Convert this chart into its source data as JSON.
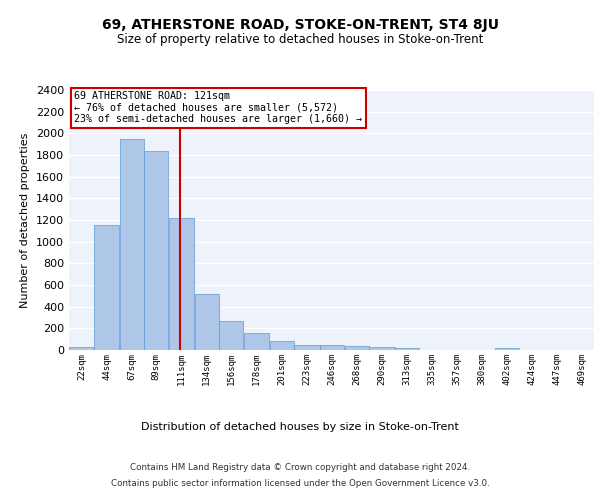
{
  "title": "69, ATHERSTONE ROAD, STOKE-ON-TRENT, ST4 8JU",
  "subtitle": "Size of property relative to detached houses in Stoke-on-Trent",
  "xlabel": "Distribution of detached houses by size in Stoke-on-Trent",
  "ylabel": "Number of detached properties",
  "bin_labels": [
    "22sqm",
    "44sqm",
    "67sqm",
    "89sqm",
    "111sqm",
    "134sqm",
    "156sqm",
    "178sqm",
    "201sqm",
    "223sqm",
    "246sqm",
    "268sqm",
    "290sqm",
    "313sqm",
    "335sqm",
    "357sqm",
    "380sqm",
    "402sqm",
    "424sqm",
    "447sqm",
    "469sqm"
  ],
  "bin_edges": [
    22,
    44,
    67,
    89,
    111,
    134,
    156,
    178,
    201,
    223,
    246,
    268,
    290,
    313,
    335,
    357,
    380,
    402,
    424,
    447,
    469,
    491
  ],
  "bar_heights": [
    30,
    1150,
    1950,
    1840,
    1215,
    515,
    270,
    155,
    80,
    50,
    45,
    40,
    25,
    15,
    0,
    0,
    0,
    20,
    0,
    0,
    0
  ],
  "bar_color": "#aec6e8",
  "bar_edge_color": "#5b9bd5",
  "bg_color": "#eef3fb",
  "grid_color": "#ffffff",
  "property_size": 121,
  "red_line_color": "#cc0000",
  "annotation_line1": "69 ATHERSTONE ROAD: 121sqm",
  "annotation_line2": "← 76% of detached houses are smaller (5,572)",
  "annotation_line3": "23% of semi-detached houses are larger (1,660) →",
  "annotation_box_color": "#ffffff",
  "annotation_border_color": "#cc0000",
  "ylim": [
    0,
    2400
  ],
  "yticks": [
    0,
    200,
    400,
    600,
    800,
    1000,
    1200,
    1400,
    1600,
    1800,
    2000,
    2200,
    2400
  ],
  "footer_line1": "Contains HM Land Registry data © Crown copyright and database right 2024.",
  "footer_line2": "Contains public sector information licensed under the Open Government Licence v3.0."
}
